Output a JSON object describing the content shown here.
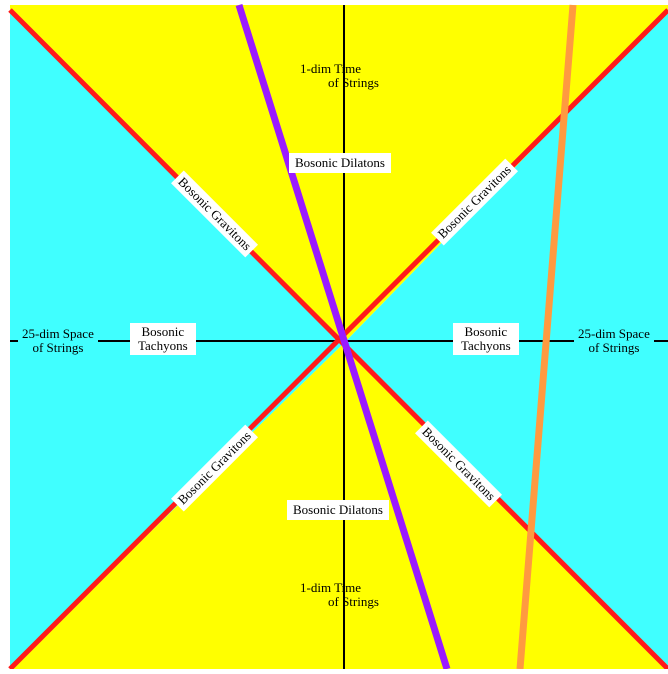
{
  "colors": {
    "time_region": "#ffff00",
    "space_region": "#40ffff",
    "graviton_line": "#ff1a1a",
    "dilaton_line": "#9a1aff",
    "extra_line": "#ff9a40",
    "axis": "#000000",
    "background": "#ffffff"
  },
  "labels": {
    "time_top_line1": "1-dim Time",
    "time_top_line2": "of Strings",
    "time_bottom_line1": "1-dim Time",
    "time_bottom_line2": "of Strings",
    "space_left_line1": "25-dim Space",
    "space_left_line2": "of Strings",
    "space_right_line1": "25-dim Space",
    "space_right_line2": "of Strings",
    "tachyons_left_line1": "Bosonic",
    "tachyons_left_line2": "Tachyons",
    "tachyons_right_line1": "Bosonic",
    "tachyons_right_line2": "Tachyons",
    "dilatons_top": "Bosonic Dilatons",
    "dilatons_bottom": "Bosonic Dilatons",
    "gravitons_ul": "Bosonic Gravitons",
    "gravitons_ur": "Bosonic Gravitons",
    "gravitons_ll": "Bosonic Gravitons",
    "gravitons_lr": "Bosonic Gravitons"
  }
}
